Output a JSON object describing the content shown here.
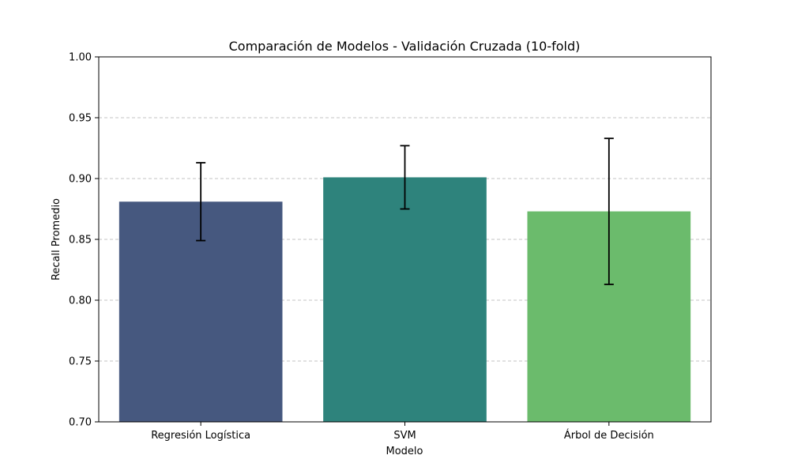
{
  "chart_data": {
    "type": "bar",
    "title": "Comparación de Modelos - Validación Cruzada (10-fold)",
    "xlabel": "Modelo",
    "ylabel": "Recall Promedio",
    "categories": [
      "Regresión Logística",
      "SVM",
      "Árbol de Decisión"
    ],
    "values": [
      0.881,
      0.901,
      0.873
    ],
    "errors": [
      0.032,
      0.026,
      0.06
    ],
    "colors": [
      "#46587f",
      "#2e837c",
      "#6bbb6c"
    ],
    "ylim": [
      0.7,
      1.0
    ],
    "yticks": [
      "0.70",
      "0.75",
      "0.80",
      "0.85",
      "0.90",
      "0.95",
      "1.00"
    ],
    "grid": "y-dashed",
    "legend": "none"
  }
}
